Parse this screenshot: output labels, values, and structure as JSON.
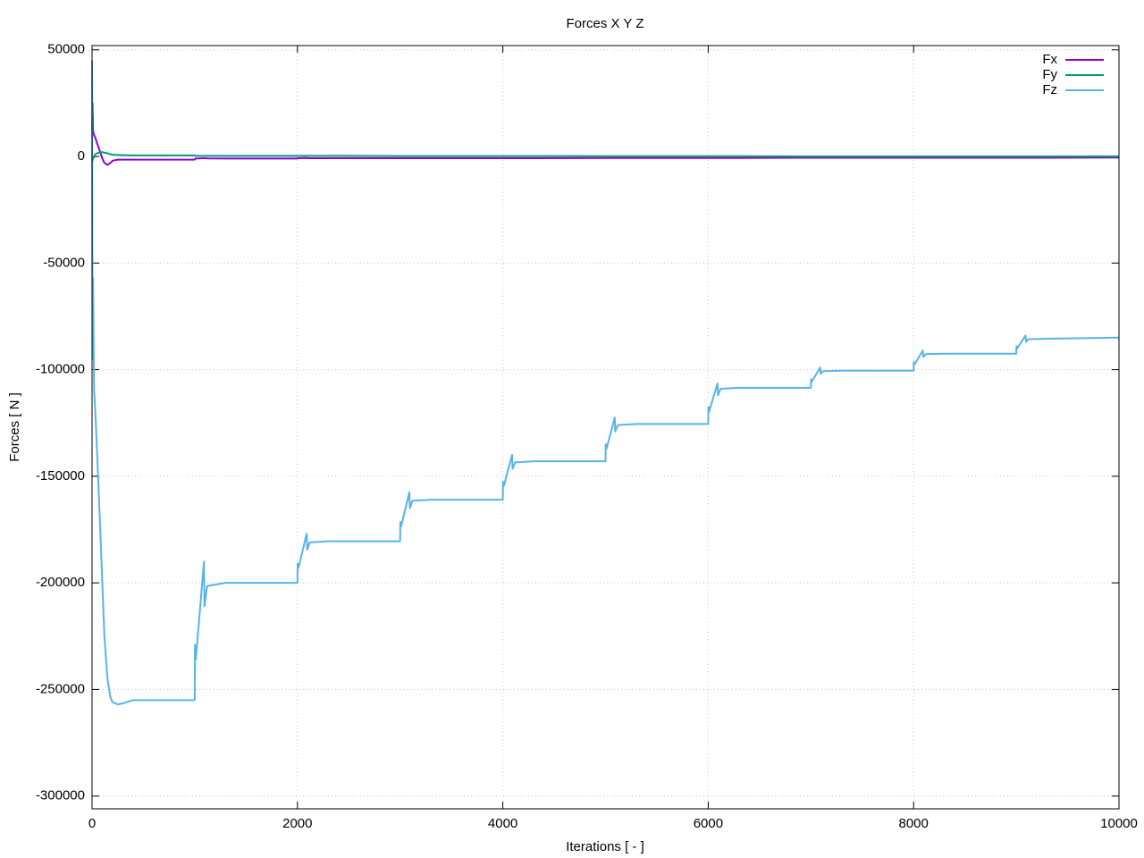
{
  "chart_data": {
    "type": "line",
    "title": "Forces X Y Z",
    "xlabel": "Iterations [ - ]",
    "ylabel": "Forces [ N ]",
    "x": [
      0,
      5,
      10,
      20,
      30,
      50,
      80,
      100,
      120,
      150,
      180,
      200,
      250,
      300,
      400,
      500,
      1000,
      1002,
      1010,
      1090,
      1095,
      1120,
      1300,
      2000,
      2002,
      2010,
      2090,
      2095,
      2120,
      2300,
      3000,
      3002,
      3010,
      3090,
      3095,
      3120,
      3300,
      4000,
      4002,
      4010,
      4090,
      4095,
      4120,
      4300,
      5000,
      5002,
      5010,
      5090,
      5095,
      5120,
      5300,
      6000,
      6002,
      6010,
      6090,
      6095,
      6120,
      6300,
      7000,
      7002,
      7010,
      7090,
      7095,
      7120,
      7300,
      8000,
      8002,
      8010,
      8090,
      8095,
      8120,
      8300,
      9000,
      9002,
      9010,
      9090,
      9095,
      9120,
      9300,
      10000
    ],
    "series": [
      {
        "name": "Fx",
        "color": "#9400d3",
        "values": [
          12000,
          25000,
          12000,
          10000,
          9000,
          6000,
          2000,
          -1000,
          -3000,
          -4000,
          -3000,
          -2000,
          -1500,
          -1500,
          -1500,
          -1500,
          -1500,
          -1200,
          -1000,
          -800,
          -800,
          -900,
          -1000,
          -1000,
          -800,
          -800,
          -700,
          -800,
          -800,
          -800,
          -800,
          -800,
          -800,
          -800,
          -800,
          -800,
          -800,
          -800,
          -800,
          -800,
          -800,
          -800,
          -800,
          -800,
          -700,
          -700,
          -700,
          -700,
          -700,
          -700,
          -700,
          -700,
          -700,
          -700,
          -700,
          -700,
          -700,
          -700,
          -600,
          -600,
          -600,
          -600,
          -600,
          -600,
          -600,
          -600,
          -600,
          -600,
          -600,
          -600,
          -600,
          -600,
          -600,
          -600,
          -600,
          -600,
          -600,
          -600,
          -600,
          -500
        ]
      },
      {
        "name": "Fy",
        "color": "#009e73",
        "values": [
          0,
          -2000,
          -1000,
          -500,
          1000,
          1500,
          2000,
          2000,
          1800,
          1500,
          1000,
          800,
          700,
          600,
          500,
          500,
          500,
          300,
          300,
          300,
          300,
          300,
          300,
          300,
          300,
          300,
          300,
          300,
          300,
          300,
          200,
          200,
          200,
          200,
          200,
          200,
          200,
          200,
          200,
          200,
          200,
          200,
          200,
          200,
          100,
          100,
          100,
          100,
          100,
          100,
          100,
          100,
          100,
          100,
          100,
          100,
          100,
          100,
          0,
          0,
          0,
          0,
          0,
          0,
          0,
          0,
          0,
          0,
          0,
          0,
          0,
          0,
          0,
          0,
          0,
          0,
          0,
          0,
          0,
          0
        ]
      },
      {
        "name": "Fz",
        "color": "#56b4e9",
        "values": [
          45000,
          -95000,
          -57000,
          -110000,
          -118000,
          -140000,
          -175000,
          -200000,
          -225000,
          -245000,
          -254000,
          -256000,
          -257000,
          -256500,
          -255000,
          -255000,
          -255000,
          -229000,
          -236000,
          -190000,
          -211000,
          -201500,
          -200000,
          -200000,
          -191000,
          -193000,
          -177000,
          -184500,
          -181000,
          -180500,
          -180500,
          -171500,
          -173500,
          -157500,
          -165000,
          -161500,
          -161000,
          -161000,
          -152500,
          -154500,
          -140000,
          -146500,
          -143500,
          -143000,
          -143000,
          -135000,
          -137000,
          -122500,
          -129000,
          -126000,
          -125500,
          -125500,
          -117500,
          -119500,
          -106500,
          -112000,
          -109000,
          -108500,
          -108500,
          -104500,
          -105500,
          -99000,
          -102000,
          -100700,
          -100500,
          -100500,
          -96500,
          -97500,
          -91000,
          -94000,
          -92700,
          -92500,
          -92500,
          -89000,
          -90000,
          -84000,
          -87000,
          -85700,
          -85500,
          -85000
        ]
      }
    ],
    "xlim": [
      0,
      10000
    ],
    "xticks": [
      0,
      2000,
      4000,
      6000,
      8000,
      10000
    ],
    "ylim": [
      -306000,
      52000
    ],
    "yticks": [
      -300000,
      -250000,
      -200000,
      -150000,
      -100000,
      -50000,
      0,
      50000
    ],
    "grid": true,
    "legend": "top-right"
  }
}
